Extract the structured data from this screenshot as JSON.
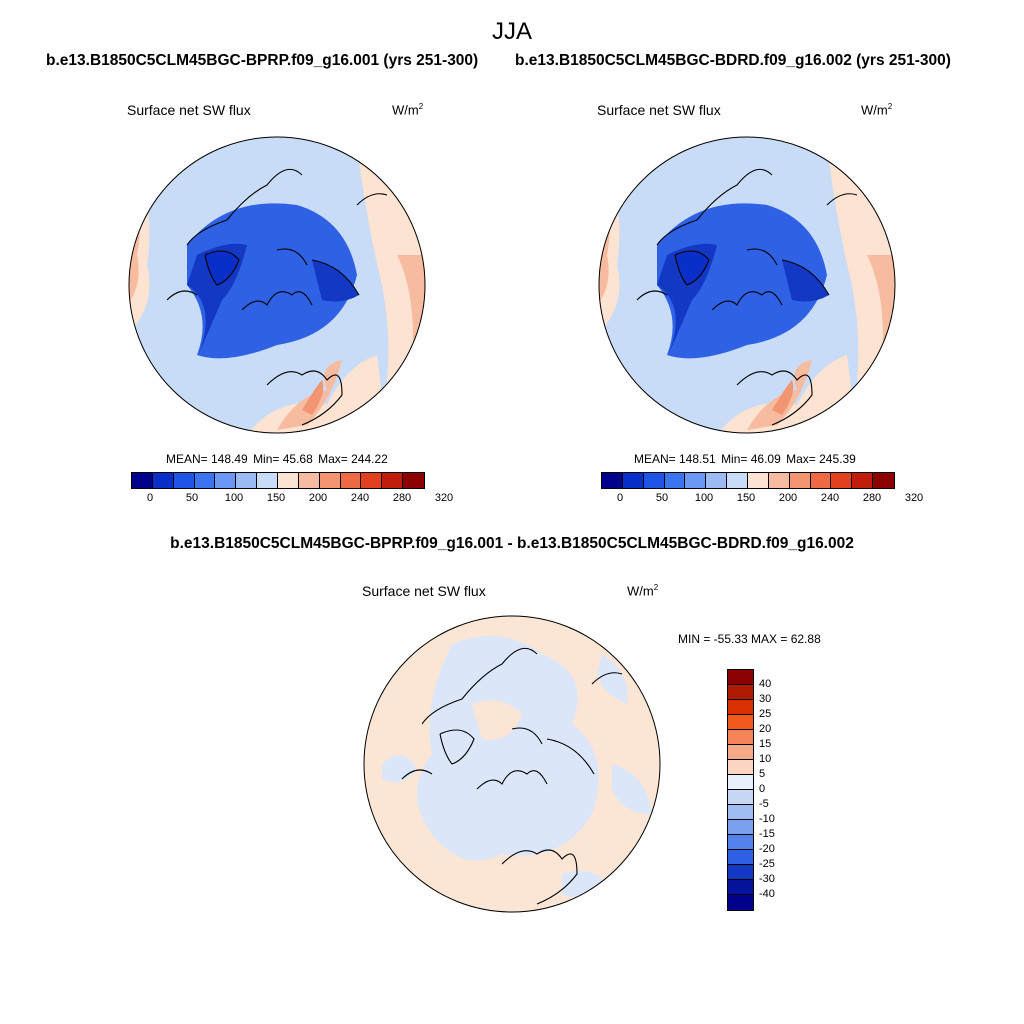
{
  "title": "JJA",
  "case_left": "b.e13.B1850C5CLM45BGC-BPRP.f09_g16.001 (yrs 251-300)",
  "case_right": "b.e13.B1850C5CLM45BGC-BDRD.f09_g16.002 (yrs 251-300)",
  "diff_title": "b.e13.B1850C5CLM45BGC-BPRP.f09_g16.001 - b.e13.B1850C5CLM45BGC-BDRD.f09_g16.002",
  "panels": {
    "left": {
      "label": "Surface net SW flux",
      "unit": "W/m",
      "unit_exp": "2",
      "mean": "MEAN= 148.49",
      "min": "Min=  45.68",
      "max": "Max= 244.22"
    },
    "right": {
      "label": "Surface net SW flux",
      "unit": "W/m",
      "unit_exp": "2",
      "mean": "MEAN= 148.51",
      "min": "Min=  46.09",
      "max": "Max= 245.39"
    },
    "diff": {
      "label": "Surface net SW flux",
      "unit": "W/m",
      "unit_exp": "2",
      "minmax": "MIN = -55.33 MAX =  62.88"
    }
  },
  "colorbar_main": {
    "colors": [
      "#00008b",
      "#0a2fc8",
      "#1e55e6",
      "#3a74ef",
      "#6a98f2",
      "#9cbaf4",
      "#c9dcf7",
      "#fde3d2",
      "#f7bca0",
      "#f29572",
      "#ed6a45",
      "#e3401f",
      "#c01e0a",
      "#8b0000"
    ],
    "ticks": [
      "0",
      "50",
      "100",
      "150",
      "200",
      "240",
      "280",
      "320"
    ]
  },
  "colorbar_diff": {
    "colors": [
      "#8b0000",
      "#b01a00",
      "#d83000",
      "#f25a1c",
      "#f5845a",
      "#f6aa88",
      "#fbd5bf",
      "#e8f0fb",
      "#c6d8f6",
      "#a0bdf2",
      "#7aa0ef",
      "#5482ec",
      "#2e61e4",
      "#1238c4",
      "#04139a",
      "#00008b"
    ],
    "ticks": [
      "40",
      "30",
      "25",
      "20",
      "15",
      "10",
      "5",
      "0",
      "-5",
      "-10",
      "-15",
      "-20",
      "-25",
      "-30",
      "-40"
    ]
  },
  "map_colors": {
    "ocean_mid": "#c9dcf7",
    "ice_deep": "#2e61e4",
    "ice_core": "#1238c4",
    "land_dark": "#0a2fc8",
    "warm_light": "#fde3d2",
    "warm_mid": "#f7bca0",
    "warm_hot": "#f29572",
    "diff_warm": "#fbe6d6",
    "diff_cool": "#dbe7f9"
  }
}
